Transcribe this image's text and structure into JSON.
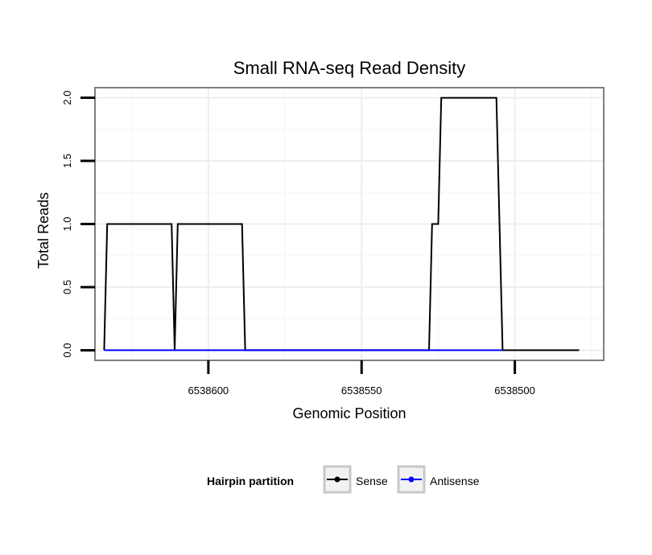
{
  "chart_data": {
    "type": "line",
    "title": "Small RNA-seq Read Density",
    "xlabel": "Genomic Position",
    "ylabel": "Total Reads",
    "x_reversed": true,
    "xlim": [
      6538637,
      6538471
    ],
    "ylim": [
      -0.08,
      2.08
    ],
    "x_ticks": [
      6538600,
      6538550,
      6538500
    ],
    "x_tick_labels": [
      "6538600",
      "6538550",
      "6538500"
    ],
    "y_ticks": [
      0.0,
      0.5,
      1.0,
      1.5,
      2.0
    ],
    "y_tick_labels": [
      "0.0",
      "0.5",
      "1.0",
      "1.5",
      "2.0"
    ],
    "grid": true,
    "legend_position": "bottom",
    "legend_title": "Hairpin partition",
    "series": [
      {
        "name": "Sense",
        "color": "#000000",
        "x": [
          6538634,
          6538633,
          6538612,
          6538611,
          6538610,
          6538589,
          6538588,
          6538528,
          6538527,
          6538525,
          6538524,
          6538506,
          6538504,
          6538479
        ],
        "y": [
          0,
          1,
          1,
          0,
          1,
          1,
          0,
          0,
          1,
          1,
          2,
          2,
          0,
          0
        ]
      },
      {
        "name": "Antisense",
        "color": "#0000ff",
        "x": [
          6538634,
          6538588,
          6538528,
          6538504
        ],
        "y": [
          0,
          0,
          0,
          0
        ]
      }
    ]
  }
}
